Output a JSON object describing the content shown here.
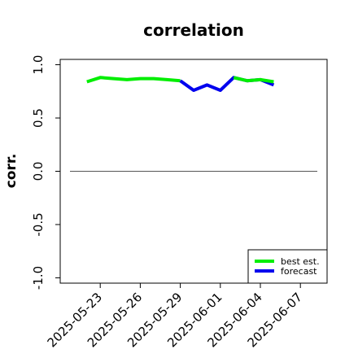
{
  "chart_data": {
    "type": "line",
    "title": "correlation",
    "ylabel": "corr.",
    "xlabel": "",
    "ylim": [
      -1.05,
      1.05
    ],
    "yticks": [
      -1.0,
      -0.5,
      0.0,
      0.5,
      1.0
    ],
    "ytick_labels": [
      "-1.0",
      "-0.5",
      "0.0",
      "0.5",
      "1.0"
    ],
    "xlim": [
      "2025-05-20",
      "2025-06-09"
    ],
    "xticks": [
      "2025-05-23",
      "2025-05-26",
      "2025-05-29",
      "2025-06-01",
      "2025-06-04",
      "2025-06-07"
    ],
    "highlight_xtick": "2025-05-29",
    "highlight_color": "#228B22",
    "reference_line": 0.0,
    "series": [
      {
        "name": "best est.",
        "color": "#00ee00",
        "x": [
          "2025-05-22",
          "2025-05-23",
          "2025-05-24",
          "2025-05-25",
          "2025-05-26",
          "2025-05-27",
          "2025-05-28",
          "2025-05-29"
        ],
        "y": [
          0.84,
          0.88,
          0.87,
          0.86,
          0.87,
          0.87,
          0.86,
          0.85
        ]
      },
      {
        "name": "forecast",
        "color": "#0000ee",
        "x": [
          "2025-05-29",
          "2025-05-30",
          "2025-05-31",
          "2025-06-01",
          "2025-06-02",
          "2025-06-03",
          "2025-06-04",
          "2025-06-05"
        ],
        "y": [
          0.85,
          0.76,
          0.81,
          0.76,
          0.88,
          0.85,
          0.86,
          0.81
        ]
      },
      {
        "name": "",
        "color": "#00ee00",
        "x": [
          "2025-06-02",
          "2025-06-03",
          "2025-06-04",
          "2025-06-05"
        ],
        "y": [
          0.88,
          0.85,
          0.86,
          0.84
        ]
      }
    ],
    "legend": {
      "placement": "bottom-right",
      "entries": [
        {
          "label": "best est.",
          "color": "#00ee00"
        },
        {
          "label": "forecast",
          "color": "#0000ee"
        }
      ]
    },
    "grid": false
  }
}
